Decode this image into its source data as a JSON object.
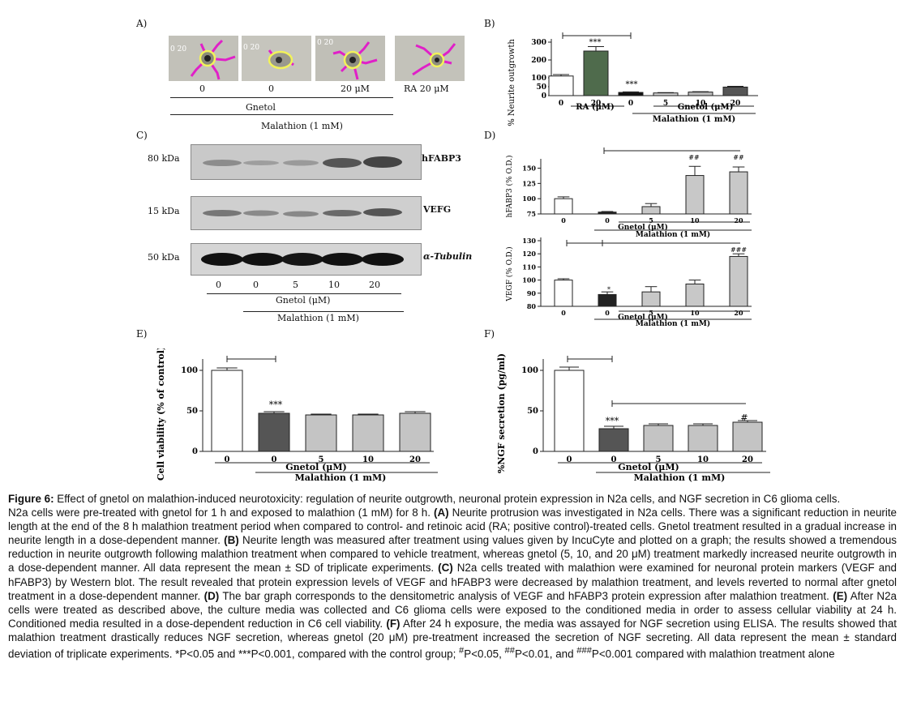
{
  "panelA": {
    "label": "A)",
    "scale_texts": [
      "0 20",
      "0 20",
      "0 20"
    ],
    "lanes": [
      "0",
      "0",
      "20 μM",
      "RA 20 μM"
    ],
    "gnetol_label": "Gnetol",
    "malathion_label": "Malathion (1 mM)"
  },
  "panelB": {
    "label": "B)",
    "ylabel": "% Neurite outgrowth",
    "yticks": [
      "300",
      "200",
      "100",
      "50",
      "0"
    ],
    "xticks": [
      "0",
      "20",
      "0",
      "5",
      "10",
      "20"
    ],
    "ra_label": "RA (μM)",
    "gnetol_label": "Gnetol (μM)",
    "malathion_label": "Malathion (1 mM)",
    "sig_top": "***",
    "sig_bar": "***"
  },
  "panelC": {
    "label": "C)",
    "bands": [
      {
        "mw": "80 kDa",
        "name": "hFABP3"
      },
      {
        "mw": "15 kDa",
        "name": "VEFG"
      },
      {
        "mw": "50 kDa",
        "name": "α-Tubulin"
      }
    ],
    "lanes": [
      "0",
      "0",
      "5",
      "10",
      "20"
    ],
    "gnetol_label": "Gnetol (μM)",
    "malathion_label": "Malathion (1 mM)"
  },
  "panelD": {
    "label": "D)",
    "top": {
      "ylabel": "hFABP3 (% O.D.)",
      "yticks": [
        "150",
        "125",
        "100",
        "75"
      ],
      "xticks": [
        "0",
        "0",
        "5",
        "10",
        "20"
      ],
      "sig": [
        "##",
        "##"
      ],
      "gnetol_label": "Gnetol (μM)",
      "malathion_label": "Malathion (1 mM)"
    },
    "bottom": {
      "ylabel": "VEGF (% O.D.)",
      "yticks": [
        "130",
        "120",
        "110",
        "100",
        "90",
        "80"
      ],
      "xticks": [
        "0",
        "0",
        "5",
        "10",
        "20"
      ],
      "sig": [
        "*",
        "###"
      ],
      "gnetol_label": "Gnetol (μM)",
      "malathion_label": "Malathion (1 mM)"
    }
  },
  "panelE": {
    "label": "E)",
    "ylabel": "Cell viability (% of control)",
    "yticks": [
      "100",
      "50",
      "0"
    ],
    "xticks": [
      "0",
      "0",
      "5",
      "10",
      "20"
    ],
    "sig": "***",
    "gnetol_label": "Gnetol (μM)",
    "malathion_label": "Malathion (1 mM)"
  },
  "panelF": {
    "label": "F)",
    "ylabel": "%NGF secretion (pg/ml)",
    "yticks": [
      "100",
      "50",
      "0"
    ],
    "xticks": [
      "0",
      "0",
      "5",
      "10",
      "20"
    ],
    "sig": [
      "***",
      "#"
    ],
    "gnetol_label": "Gnetol (μM)",
    "malathion_label": "Malathion (1 mM)"
  },
  "chart_data": [
    {
      "type": "bar",
      "panel": "B",
      "categories": [
        "0",
        "20",
        "0",
        "5",
        "10",
        "20"
      ],
      "values": [
        110,
        250,
        18,
        15,
        20,
        48
      ],
      "errors": [
        8,
        25,
        3,
        2,
        2,
        4
      ],
      "ylim": [
        0,
        300
      ]
    },
    {
      "type": "bar",
      "panel": "D-top",
      "categories": [
        "0",
        "0",
        "5",
        "10",
        "20"
      ],
      "values": [
        100,
        78,
        87,
        138,
        144
      ],
      "errors": [
        3,
        1,
        5,
        15,
        8
      ],
      "ylim": [
        75,
        160
      ]
    },
    {
      "type": "bar",
      "panel": "D-bottom",
      "categories": [
        "0",
        "0",
        "5",
        "10",
        "20"
      ],
      "values": [
        100,
        89,
        91,
        97,
        118
      ],
      "errors": [
        1,
        2,
        4,
        3,
        2
      ],
      "ylim": [
        80,
        130
      ]
    },
    {
      "type": "bar",
      "panel": "E",
      "categories": [
        "0",
        "0",
        "5",
        "10",
        "20"
      ],
      "values": [
        100,
        47,
        45,
        45,
        47
      ],
      "errors": [
        3,
        2,
        1,
        1,
        2
      ],
      "ylim": [
        0,
        110
      ]
    },
    {
      "type": "bar",
      "panel": "F",
      "categories": [
        "0",
        "0",
        "5",
        "10",
        "20"
      ],
      "values": [
        100,
        28,
        32,
        32,
        36
      ],
      "errors": [
        4,
        3,
        2,
        2,
        2
      ],
      "ylim": [
        0,
        110
      ]
    }
  ],
  "caption": {
    "title_prefix": "Figure 6:",
    "title_text": " Effect of gnetol on malathion-induced neurotoxicity: regulation of neurite outgrowth, neuronal protein expression in N2a cells, and NGF secretion in C6 glioma cells.",
    "s0": "N2a cells were pre-treated with gnetol for 1 h and exposed to malathion (1 mM) for 8 h. ",
    "lA": "(A)",
    "tA": " Neurite protrusion was investigated in N2a cells. There was a significant reduction in neurite length at the end of the 8 h malathion treatment period when compared to control- and retinoic acid (RA; positive control)-treated cells. Gnetol treatment resulted in a gradual increase in neurite length in a dose-dependent manner. ",
    "lB": "(B)",
    "tB": " Neurite length was measured after treatment using values given by IncuCyte and plotted on a graph; the results showed a tremendous reduction in neurite outgrowth following malathion treatment when compared to vehicle treatment, whereas gnetol (5, 10, and 20 μM) treatment markedly increased neurite outgrowth in a dose-dependent manner. All data represent the mean ± SD of triplicate experiments. ",
    "lC": "(C)",
    "tC": " N2a cells treated with malathion were examined for neuronal protein markers (VEGF and hFABP3) by Western blot. The result revealed that protein expression levels of VEGF and hFABP3 were decreased by malathion treatment, and levels reverted to normal after gnetol treatment in a dose-dependent manner. ",
    "lD": "(D)",
    "tD": " The bar graph corresponds to the densitometric analysis of VEGF and hFABP3 protein expression after malathion treatment.  ",
    "lE": "(E)",
    "tE": " After N2a cells were treated as described above, the culture media was collected and C6 glioma cells were exposed to the conditioned media in order to assess cellular viability at 24 h. Conditioned media resulted in a dose-dependent reduction in C6 cell viability. ",
    "lF": "(F)",
    "tF": " After 24 h exposure, the media was assayed for NGF secretion using ELISA. The results showed that malathion treatment drastically reduces NGF secretion, whereas gnetol (20 μM) pre-treatment increased the secretion of NGF secreting. All data represent the  mean ± standard deviation of triplicate experiments. *P<0.05 and ***P<0.001, compared with the control group; ",
    "h1": "#",
    "p1": "P<0.05, ",
    "h2": "##",
    "p2": "P<0.01, and ",
    "h3": "###",
    "p3": "P<0.001 compared with malathion treatment alone"
  }
}
